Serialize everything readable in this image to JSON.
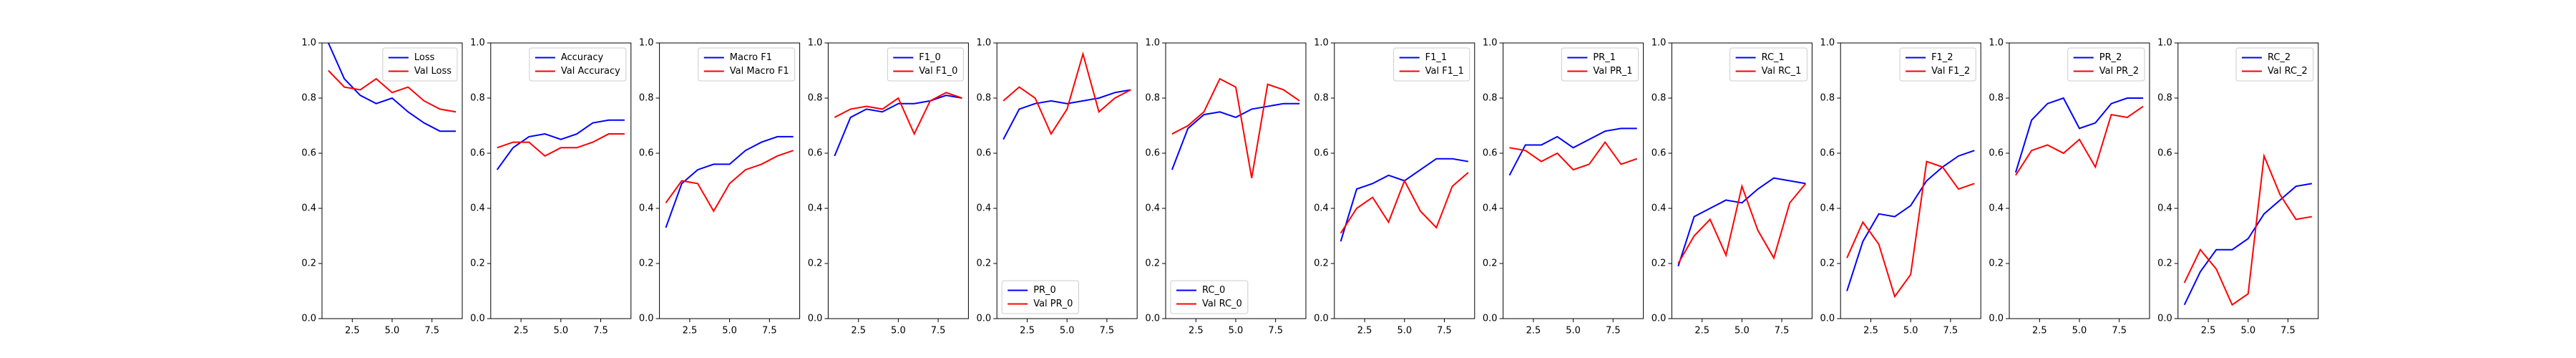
{
  "chart_data": [
    {
      "type": "line",
      "x": [
        1,
        2,
        3,
        4,
        5,
        6,
        7,
        8,
        9
      ],
      "xlim": [
        0.6,
        9.4
      ],
      "ylim": [
        0,
        1
      ],
      "legend": "upper right",
      "xticks": [
        {
          "value": 2.5,
          "label": "2.5"
        },
        {
          "value": 5,
          "label": "5.0"
        },
        {
          "value": 7.5,
          "label": "7.5"
        }
      ],
      "yticks": [
        {
          "value": 0,
          "label": "0.0"
        },
        {
          "value": 0.2,
          "label": "0.2"
        },
        {
          "value": 0.4,
          "label": "0.4"
        },
        {
          "value": 0.6,
          "label": "0.6"
        },
        {
          "value": 0.8,
          "label": "0.8"
        },
        {
          "value": 1,
          "label": "1.0"
        }
      ],
      "series": [
        {
          "name": "Loss",
          "color": "#0000ff",
          "values": [
            1.0,
            0.87,
            0.81,
            0.78,
            0.8,
            0.75,
            0.71,
            0.68,
            0.68
          ]
        },
        {
          "name": "Val Loss",
          "color": "#ff0000",
          "values": [
            0.9,
            0.84,
            0.83,
            0.87,
            0.82,
            0.84,
            0.79,
            0.76,
            0.75
          ]
        }
      ]
    },
    {
      "type": "line",
      "x": [
        1,
        2,
        3,
        4,
        5,
        6,
        7,
        8,
        9
      ],
      "xlim": [
        0.6,
        9.4
      ],
      "ylim": [
        0,
        1
      ],
      "legend": "upper right",
      "xticks": [
        {
          "value": 2.5,
          "label": "2.5"
        },
        {
          "value": 5,
          "label": "5.0"
        },
        {
          "value": 7.5,
          "label": "7.5"
        }
      ],
      "yticks": [
        {
          "value": 0,
          "label": "0.0"
        },
        {
          "value": 0.2,
          "label": "0.2"
        },
        {
          "value": 0.4,
          "label": "0.4"
        },
        {
          "value": 0.6,
          "label": "0.6"
        },
        {
          "value": 0.8,
          "label": "0.8"
        },
        {
          "value": 1,
          "label": "1.0"
        }
      ],
      "series": [
        {
          "name": "Accuracy",
          "color": "#0000ff",
          "values": [
            0.54,
            0.62,
            0.66,
            0.67,
            0.65,
            0.67,
            0.71,
            0.72,
            0.72
          ]
        },
        {
          "name": "Val Accuracy",
          "color": "#ff0000",
          "values": [
            0.62,
            0.64,
            0.64,
            0.59,
            0.62,
            0.62,
            0.64,
            0.67,
            0.67
          ]
        }
      ]
    },
    {
      "type": "line",
      "x": [
        1,
        2,
        3,
        4,
        5,
        6,
        7,
        8,
        9
      ],
      "xlim": [
        0.6,
        9.4
      ],
      "ylim": [
        0,
        1
      ],
      "legend": "upper right",
      "xticks": [
        {
          "value": 2.5,
          "label": "2.5"
        },
        {
          "value": 5,
          "label": "5.0"
        },
        {
          "value": 7.5,
          "label": "7.5"
        }
      ],
      "yticks": [
        {
          "value": 0,
          "label": "0.0"
        },
        {
          "value": 0.2,
          "label": "0.2"
        },
        {
          "value": 0.4,
          "label": "0.4"
        },
        {
          "value": 0.6,
          "label": "0.6"
        },
        {
          "value": 0.8,
          "label": "0.8"
        },
        {
          "value": 1,
          "label": "1.0"
        }
      ],
      "series": [
        {
          "name": "Macro F1",
          "color": "#0000ff",
          "values": [
            0.33,
            0.49,
            0.54,
            0.56,
            0.56,
            0.61,
            0.64,
            0.66,
            0.66
          ]
        },
        {
          "name": "Val Macro F1",
          "color": "#ff0000",
          "values": [
            0.42,
            0.5,
            0.49,
            0.39,
            0.49,
            0.54,
            0.56,
            0.59,
            0.61
          ]
        }
      ]
    },
    {
      "type": "line",
      "x": [
        1,
        2,
        3,
        4,
        5,
        6,
        7,
        8,
        9
      ],
      "xlim": [
        0.6,
        9.4
      ],
      "ylim": [
        0,
        1
      ],
      "legend": "upper right",
      "xticks": [
        {
          "value": 2.5,
          "label": "2.5"
        },
        {
          "value": 5,
          "label": "5.0"
        },
        {
          "value": 7.5,
          "label": "7.5"
        }
      ],
      "yticks": [
        {
          "value": 0,
          "label": "0.0"
        },
        {
          "value": 0.2,
          "label": "0.2"
        },
        {
          "value": 0.4,
          "label": "0.4"
        },
        {
          "value": 0.6,
          "label": "0.6"
        },
        {
          "value": 0.8,
          "label": "0.8"
        },
        {
          "value": 1,
          "label": "1.0"
        }
      ],
      "series": [
        {
          "name": "F1_0",
          "color": "#0000ff",
          "values": [
            0.59,
            0.73,
            0.76,
            0.75,
            0.78,
            0.78,
            0.79,
            0.81,
            0.8
          ]
        },
        {
          "name": "Val F1_0",
          "color": "#ff0000",
          "values": [
            0.73,
            0.76,
            0.77,
            0.76,
            0.8,
            0.67,
            0.79,
            0.82,
            0.8
          ]
        }
      ]
    },
    {
      "type": "line",
      "x": [
        1,
        2,
        3,
        4,
        5,
        6,
        7,
        8,
        9
      ],
      "xlim": [
        0.6,
        9.4
      ],
      "ylim": [
        0,
        1
      ],
      "legend": "lower left",
      "xticks": [
        {
          "value": 2.5,
          "label": "2.5"
        },
        {
          "value": 5,
          "label": "5.0"
        },
        {
          "value": 7.5,
          "label": "7.5"
        }
      ],
      "yticks": [
        {
          "value": 0,
          "label": "0.0"
        },
        {
          "value": 0.2,
          "label": "0.2"
        },
        {
          "value": 0.4,
          "label": "0.4"
        },
        {
          "value": 0.6,
          "label": "0.6"
        },
        {
          "value": 0.8,
          "label": "0.8"
        },
        {
          "value": 1,
          "label": "1.0"
        }
      ],
      "series": [
        {
          "name": "PR_0",
          "color": "#0000ff",
          "values": [
            0.65,
            0.76,
            0.78,
            0.79,
            0.78,
            0.79,
            0.8,
            0.82,
            0.83
          ]
        },
        {
          "name": "Val PR_0",
          "color": "#ff0000",
          "values": [
            0.79,
            0.84,
            0.8,
            0.67,
            0.76,
            0.96,
            0.75,
            0.8,
            0.83
          ]
        }
      ]
    },
    {
      "type": "line",
      "x": [
        1,
        2,
        3,
        4,
        5,
        6,
        7,
        8,
        9
      ],
      "xlim": [
        0.6,
        9.4
      ],
      "ylim": [
        0,
        1
      ],
      "legend": "lower left",
      "xticks": [
        {
          "value": 2.5,
          "label": "2.5"
        },
        {
          "value": 5,
          "label": "5.0"
        },
        {
          "value": 7.5,
          "label": "7.5"
        }
      ],
      "yticks": [
        {
          "value": 0,
          "label": "0.0"
        },
        {
          "value": 0.2,
          "label": "0.2"
        },
        {
          "value": 0.4,
          "label": "0.4"
        },
        {
          "value": 0.6,
          "label": "0.6"
        },
        {
          "value": 0.8,
          "label": "0.8"
        },
        {
          "value": 1,
          "label": "1.0"
        }
      ],
      "series": [
        {
          "name": "RC_0",
          "color": "#0000ff",
          "values": [
            0.54,
            0.69,
            0.74,
            0.75,
            0.73,
            0.76,
            0.77,
            0.78,
            0.78
          ]
        },
        {
          "name": "Val RC_0",
          "color": "#ff0000",
          "values": [
            0.67,
            0.7,
            0.75,
            0.87,
            0.84,
            0.51,
            0.85,
            0.83,
            0.79
          ]
        }
      ]
    },
    {
      "type": "line",
      "x": [
        1,
        2,
        3,
        4,
        5,
        6,
        7,
        8,
        9
      ],
      "xlim": [
        0.6,
        9.4
      ],
      "ylim": [
        0,
        1
      ],
      "legend": "upper right",
      "xticks": [
        {
          "value": 2.5,
          "label": "2.5"
        },
        {
          "value": 5,
          "label": "5.0"
        },
        {
          "value": 7.5,
          "label": "7.5"
        }
      ],
      "yticks": [
        {
          "value": 0,
          "label": "0.0"
        },
        {
          "value": 0.2,
          "label": "0.2"
        },
        {
          "value": 0.4,
          "label": "0.4"
        },
        {
          "value": 0.6,
          "label": "0.6"
        },
        {
          "value": 0.8,
          "label": "0.8"
        },
        {
          "value": 1,
          "label": "1.0"
        }
      ],
      "series": [
        {
          "name": "F1_1",
          "color": "#0000ff",
          "values": [
            0.28,
            0.47,
            0.49,
            0.52,
            0.5,
            0.54,
            0.58,
            0.58,
            0.57
          ]
        },
        {
          "name": "Val F1_1",
          "color": "#ff0000",
          "values": [
            0.31,
            0.4,
            0.44,
            0.35,
            0.5,
            0.39,
            0.33,
            0.48,
            0.53
          ]
        }
      ]
    },
    {
      "type": "line",
      "x": [
        1,
        2,
        3,
        4,
        5,
        6,
        7,
        8,
        9
      ],
      "xlim": [
        0.6,
        9.4
      ],
      "ylim": [
        0,
        1
      ],
      "legend": "upper right",
      "xticks": [
        {
          "value": 2.5,
          "label": "2.5"
        },
        {
          "value": 5,
          "label": "5.0"
        },
        {
          "value": 7.5,
          "label": "7.5"
        }
      ],
      "yticks": [
        {
          "value": 0,
          "label": "0.0"
        },
        {
          "value": 0.2,
          "label": "0.2"
        },
        {
          "value": 0.4,
          "label": "0.4"
        },
        {
          "value": 0.6,
          "label": "0.6"
        },
        {
          "value": 0.8,
          "label": "0.8"
        },
        {
          "value": 1,
          "label": "1.0"
        }
      ],
      "series": [
        {
          "name": "PR_1",
          "color": "#0000ff",
          "values": [
            0.52,
            0.63,
            0.63,
            0.66,
            0.62,
            0.65,
            0.68,
            0.69,
            0.69
          ]
        },
        {
          "name": "Val PR_1",
          "color": "#ff0000",
          "values": [
            0.62,
            0.61,
            0.57,
            0.6,
            0.54,
            0.56,
            0.64,
            0.56,
            0.58
          ]
        }
      ]
    },
    {
      "type": "line",
      "x": [
        1,
        2,
        3,
        4,
        5,
        6,
        7,
        8,
        9
      ],
      "xlim": [
        0.6,
        9.4
      ],
      "ylim": [
        0,
        1
      ],
      "legend": "upper right",
      "xticks": [
        {
          "value": 2.5,
          "label": "2.5"
        },
        {
          "value": 5,
          "label": "5.0"
        },
        {
          "value": 7.5,
          "label": "7.5"
        }
      ],
      "yticks": [
        {
          "value": 0,
          "label": "0.0"
        },
        {
          "value": 0.2,
          "label": "0.2"
        },
        {
          "value": 0.4,
          "label": "0.4"
        },
        {
          "value": 0.6,
          "label": "0.6"
        },
        {
          "value": 0.8,
          "label": "0.8"
        },
        {
          "value": 1,
          "label": "1.0"
        }
      ],
      "series": [
        {
          "name": "RC_1",
          "color": "#0000ff",
          "values": [
            0.19,
            0.37,
            0.4,
            0.43,
            0.42,
            0.47,
            0.51,
            0.5,
            0.49
          ]
        },
        {
          "name": "Val RC_1",
          "color": "#ff0000",
          "values": [
            0.2,
            0.3,
            0.36,
            0.23,
            0.48,
            0.32,
            0.22,
            0.42,
            0.49
          ]
        }
      ]
    },
    {
      "type": "line",
      "x": [
        1,
        2,
        3,
        4,
        5,
        6,
        7,
        8,
        9
      ],
      "xlim": [
        0.6,
        9.4
      ],
      "ylim": [
        0,
        1
      ],
      "legend": "upper right",
      "xticks": [
        {
          "value": 2.5,
          "label": "2.5"
        },
        {
          "value": 5,
          "label": "5.0"
        },
        {
          "value": 7.5,
          "label": "7.5"
        }
      ],
      "yticks": [
        {
          "value": 0,
          "label": "0.0"
        },
        {
          "value": 0.2,
          "label": "0.2"
        },
        {
          "value": 0.4,
          "label": "0.4"
        },
        {
          "value": 0.6,
          "label": "0.6"
        },
        {
          "value": 0.8,
          "label": "0.8"
        },
        {
          "value": 1,
          "label": "1.0"
        }
      ],
      "series": [
        {
          "name": "F1_2",
          "color": "#0000ff",
          "values": [
            0.1,
            0.28,
            0.38,
            0.37,
            0.41,
            0.5,
            0.55,
            0.59,
            0.61
          ]
        },
        {
          "name": "Val F1_2",
          "color": "#ff0000",
          "values": [
            0.22,
            0.35,
            0.27,
            0.08,
            0.16,
            0.57,
            0.55,
            0.47,
            0.49
          ]
        }
      ]
    },
    {
      "type": "line",
      "x": [
        1,
        2,
        3,
        4,
        5,
        6,
        7,
        8,
        9
      ],
      "xlim": [
        0.6,
        9.4
      ],
      "ylim": [
        0,
        1
      ],
      "legend": "upper right",
      "xticks": [
        {
          "value": 2.5,
          "label": "2.5"
        },
        {
          "value": 5,
          "label": "5.0"
        },
        {
          "value": 7.5,
          "label": "7.5"
        }
      ],
      "yticks": [
        {
          "value": 0,
          "label": "0.0"
        },
        {
          "value": 0.2,
          "label": "0.2"
        },
        {
          "value": 0.4,
          "label": "0.4"
        },
        {
          "value": 0.6,
          "label": "0.6"
        },
        {
          "value": 0.8,
          "label": "0.8"
        },
        {
          "value": 1,
          "label": "1.0"
        }
      ],
      "series": [
        {
          "name": "PR_2",
          "color": "#0000ff",
          "values": [
            0.53,
            0.72,
            0.78,
            0.8,
            0.69,
            0.71,
            0.78,
            0.8,
            0.8
          ]
        },
        {
          "name": "Val PR_2",
          "color": "#ff0000",
          "values": [
            0.52,
            0.61,
            0.63,
            0.6,
            0.65,
            0.55,
            0.74,
            0.73,
            0.77
          ]
        }
      ]
    },
    {
      "type": "line",
      "x": [
        1,
        2,
        3,
        4,
        5,
        6,
        7,
        8,
        9
      ],
      "xlim": [
        0.6,
        9.4
      ],
      "ylim": [
        0,
        1
      ],
      "legend": "upper right",
      "xticks": [
        {
          "value": 2.5,
          "label": "2.5"
        },
        {
          "value": 5,
          "label": "5.0"
        },
        {
          "value": 7.5,
          "label": "7.5"
        }
      ],
      "yticks": [
        {
          "value": 0,
          "label": "0.0"
        },
        {
          "value": 0.2,
          "label": "0.2"
        },
        {
          "value": 0.4,
          "label": "0.4"
        },
        {
          "value": 0.6,
          "label": "0.6"
        },
        {
          "value": 0.8,
          "label": "0.8"
        },
        {
          "value": 1,
          "label": "1.0"
        }
      ],
      "series": [
        {
          "name": "RC_2",
          "color": "#0000ff",
          "values": [
            0.05,
            0.17,
            0.25,
            0.25,
            0.29,
            0.38,
            0.43,
            0.48,
            0.49
          ]
        },
        {
          "name": "Val RC_2",
          "color": "#ff0000",
          "values": [
            0.13,
            0.25,
            0.18,
            0.05,
            0.09,
            0.59,
            0.45,
            0.36,
            0.37
          ]
        }
      ]
    }
  ]
}
